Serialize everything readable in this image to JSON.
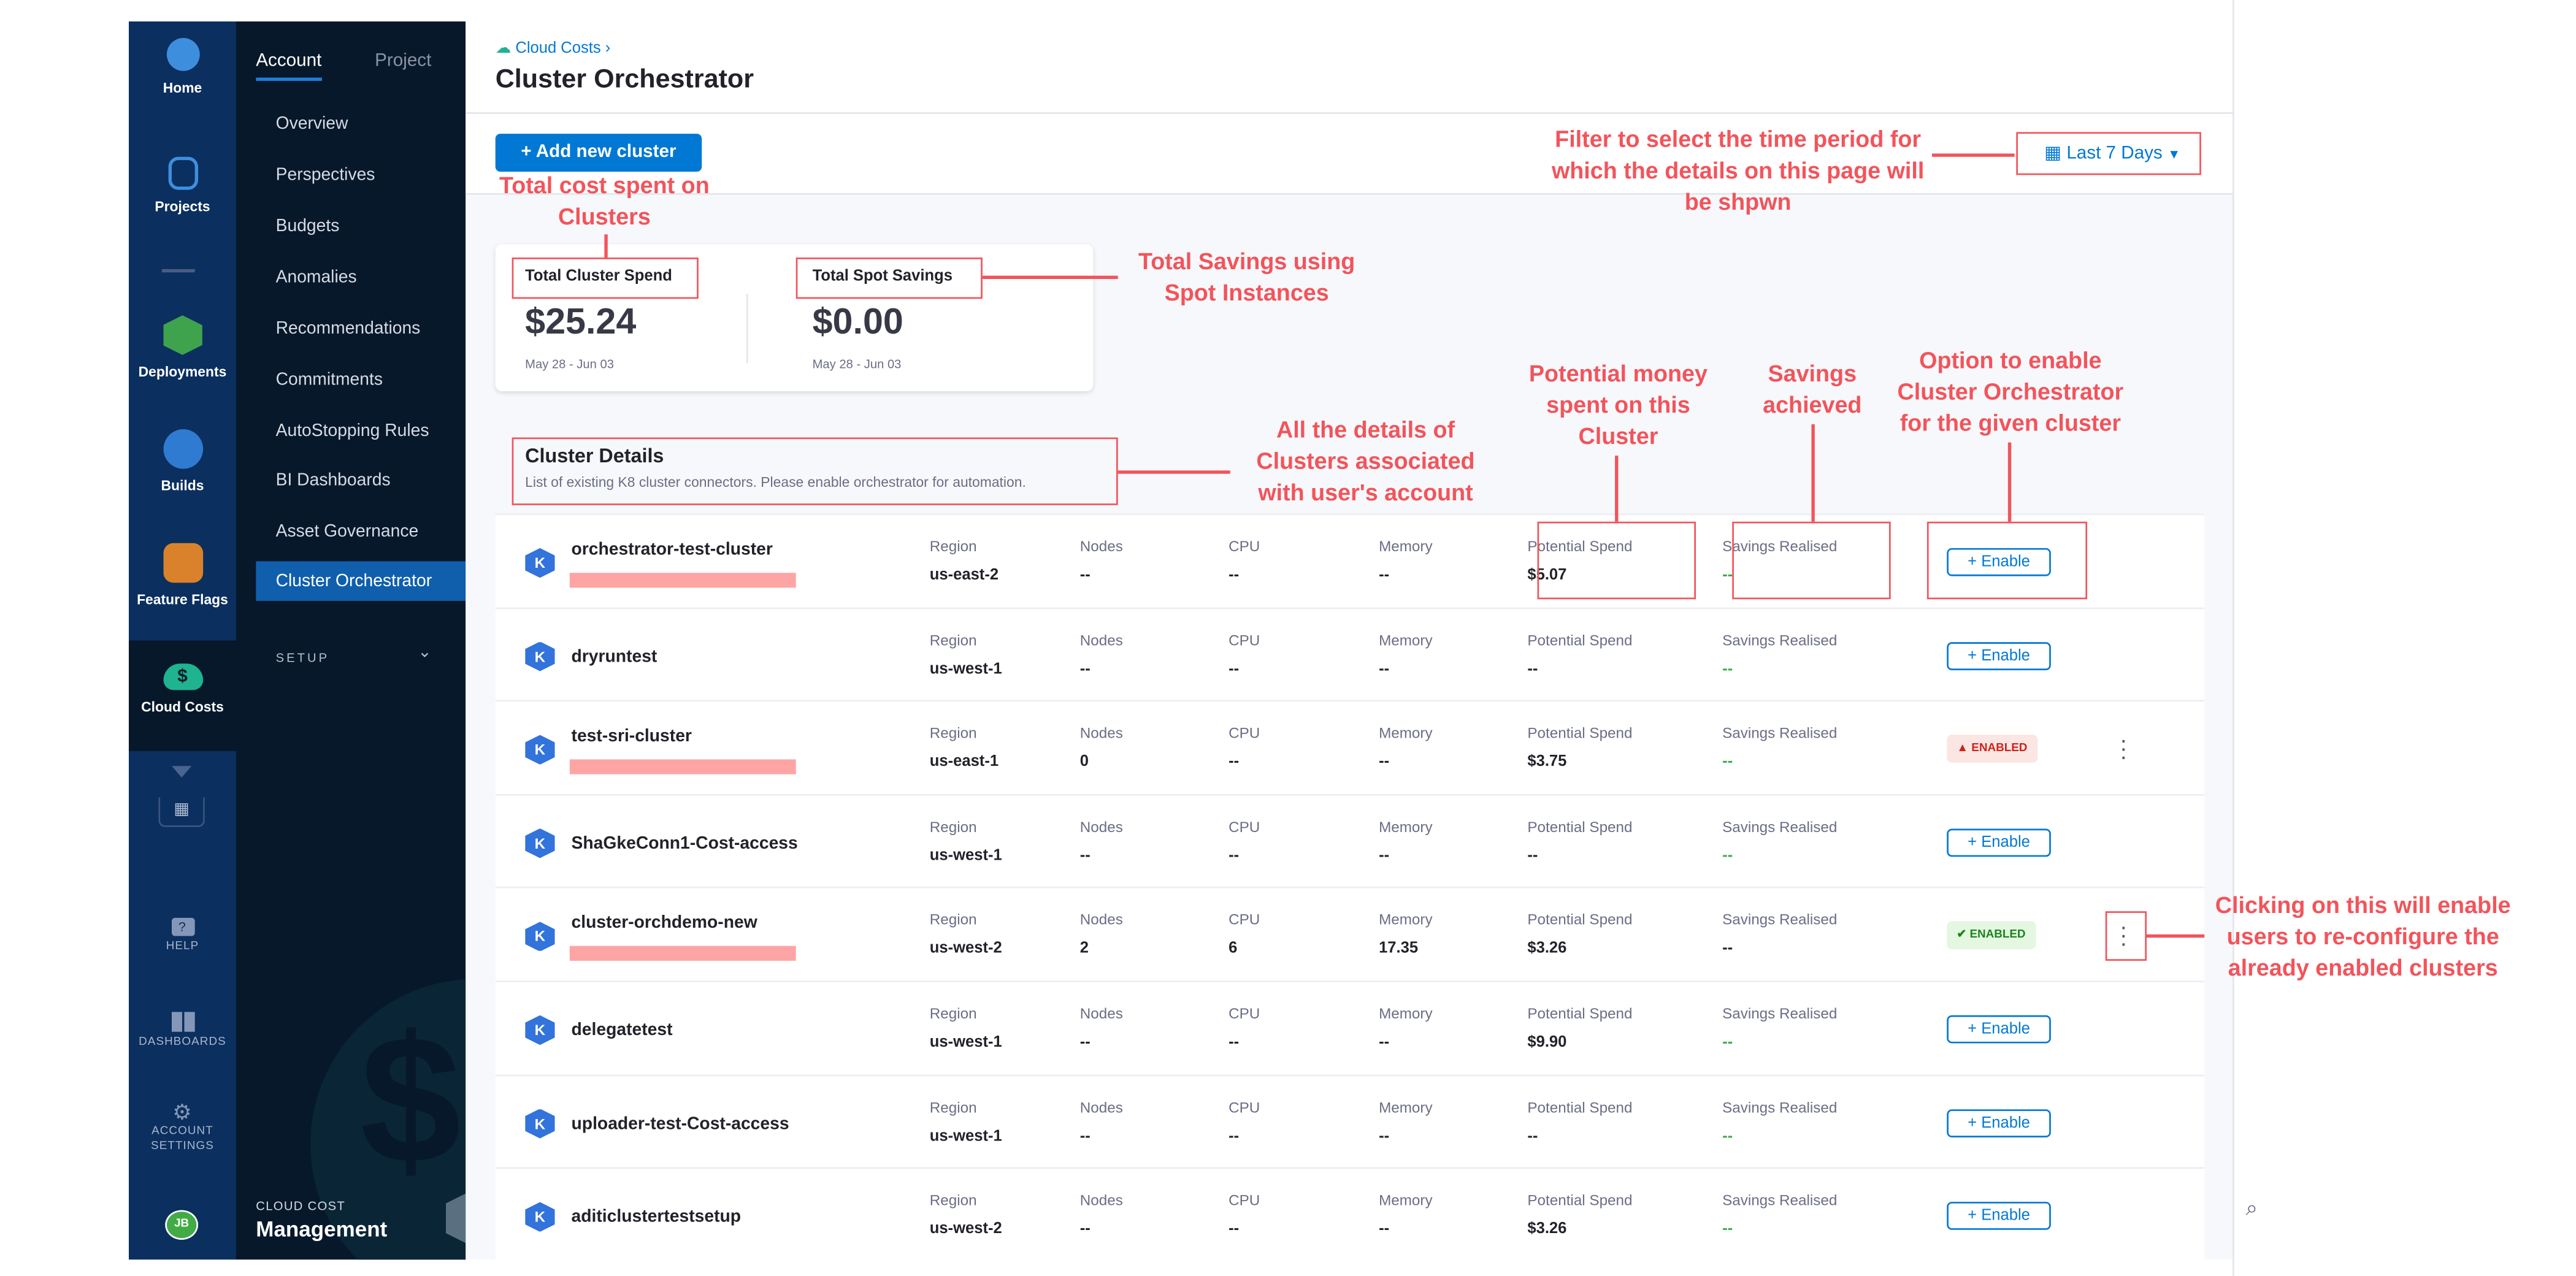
{
  "rail": {
    "items": [
      {
        "label": "Home",
        "icon": "harness-logo-icon"
      },
      {
        "label": "Projects",
        "icon": "projects-cube-icon"
      },
      {
        "label": "Deployments",
        "icon": "deployments-icon"
      },
      {
        "label": "Builds",
        "icon": "builds-icon"
      },
      {
        "label": "Feature Flags",
        "icon": "feature-flags-icon"
      },
      {
        "label": "Cloud Costs",
        "icon": "cloud-costs-icon"
      }
    ],
    "help": "HELP",
    "dashboards": "DASHBOARDS",
    "account_settings": "ACCOUNT SETTINGS",
    "avatar": "JB"
  },
  "subnav": {
    "tabs": [
      "Account",
      "Project"
    ],
    "items": [
      "Overview",
      "Perspectives",
      "Budgets",
      "Anomalies",
      "Recommendations",
      "Commitments",
      "AutoStopping Rules",
      "BI Dashboards",
      "Asset Governance",
      "Cluster Orchestrator"
    ],
    "active": "Cluster Orchestrator",
    "setup": "SETUP",
    "footer_small": "CLOUD COST",
    "footer_big": "Management"
  },
  "header": {
    "breadcrumb": "Cloud Costs",
    "title": "Cluster Orchestrator"
  },
  "toolbar": {
    "add_button": "+ Add new cluster",
    "date_filter": "Last 7 Days"
  },
  "summary": {
    "spend_label": "Total Cluster Spend",
    "spend_value": "$25.24",
    "spend_range": "May 28 - Jun 03",
    "savings_label": "Total Spot Savings",
    "savings_value": "$0.00",
    "savings_range": "May 28 - Jun 03"
  },
  "details": {
    "title": "Cluster Details",
    "subtitle": "List of existing K8 cluster connectors. Please enable orchestrator for automation.",
    "labels": {
      "region": "Region",
      "nodes": "Nodes",
      "cpu": "CPU",
      "memory": "Memory",
      "spend": "Potential Spend",
      "savings": "Savings Realised"
    },
    "enable_label": "+ Enable",
    "enabled_label": "ENABLED",
    "rows": [
      {
        "name": "orchestrator-test-cluster",
        "redacted": true,
        "region": "us-east-2",
        "nodes": "--",
        "cpu": "--",
        "memory": "--",
        "spend": "$5.07",
        "savings": "--",
        "status": "enable"
      },
      {
        "name": "dryruntest",
        "redacted": false,
        "region": "us-west-1",
        "nodes": "--",
        "cpu": "--",
        "memory": "--",
        "spend": "--",
        "savings": "--",
        "status": "enable"
      },
      {
        "name": "test-sri-cluster",
        "redacted": true,
        "region": "us-east-1",
        "nodes": "0",
        "cpu": "--",
        "memory": "--",
        "spend": "$3.75",
        "savings": "--",
        "status": "enabled-warning"
      },
      {
        "name": "ShaGkeConn1-Cost-access",
        "redacted": false,
        "region": "us-west-1",
        "nodes": "--",
        "cpu": "--",
        "memory": "--",
        "spend": "--",
        "savings": "--",
        "status": "enable"
      },
      {
        "name": "cluster-orchdemo-new",
        "redacted": true,
        "region": "us-west-2",
        "nodes": "2",
        "cpu": "6",
        "memory": "17.35",
        "spend": "$3.26",
        "savings": "--",
        "status": "enabled-ok"
      },
      {
        "name": "delegatetest",
        "redacted": false,
        "region": "us-west-1",
        "nodes": "--",
        "cpu": "--",
        "memory": "--",
        "spend": "$9.90",
        "savings": "--",
        "status": "enable"
      },
      {
        "name": "uploader-test-Cost-access",
        "redacted": false,
        "region": "us-west-1",
        "nodes": "--",
        "cpu": "--",
        "memory": "--",
        "spend": "--",
        "savings": "--",
        "status": "enable"
      },
      {
        "name": "aditiclustertestsetup",
        "redacted": false,
        "region": "us-west-2",
        "nodes": "--",
        "cpu": "--",
        "memory": "--",
        "spend": "$3.26",
        "savings": "--",
        "status": "enable"
      }
    ]
  },
  "annotations": {
    "total_cost": "Total cost spent on Clusters",
    "spot_savings": "Total Savings using Spot Instances",
    "filter": "Filter to select the time period for which the details on this page will be shpwn",
    "details": "All the details of Clusters associated with user's account",
    "potential": "Potential money spent on this Cluster",
    "savings": "Savings achieved",
    "enable": "Option to enable Cluster Orchestrator for the given cluster",
    "kebab": "Clicking on this will enable users to re-configure the already enabled clusters"
  },
  "colors": {
    "accent": "#0278d5",
    "annotation": "#f2545b",
    "rail": "#0b2f5e",
    "subnav": "#07182b",
    "success": "#42ab45"
  }
}
